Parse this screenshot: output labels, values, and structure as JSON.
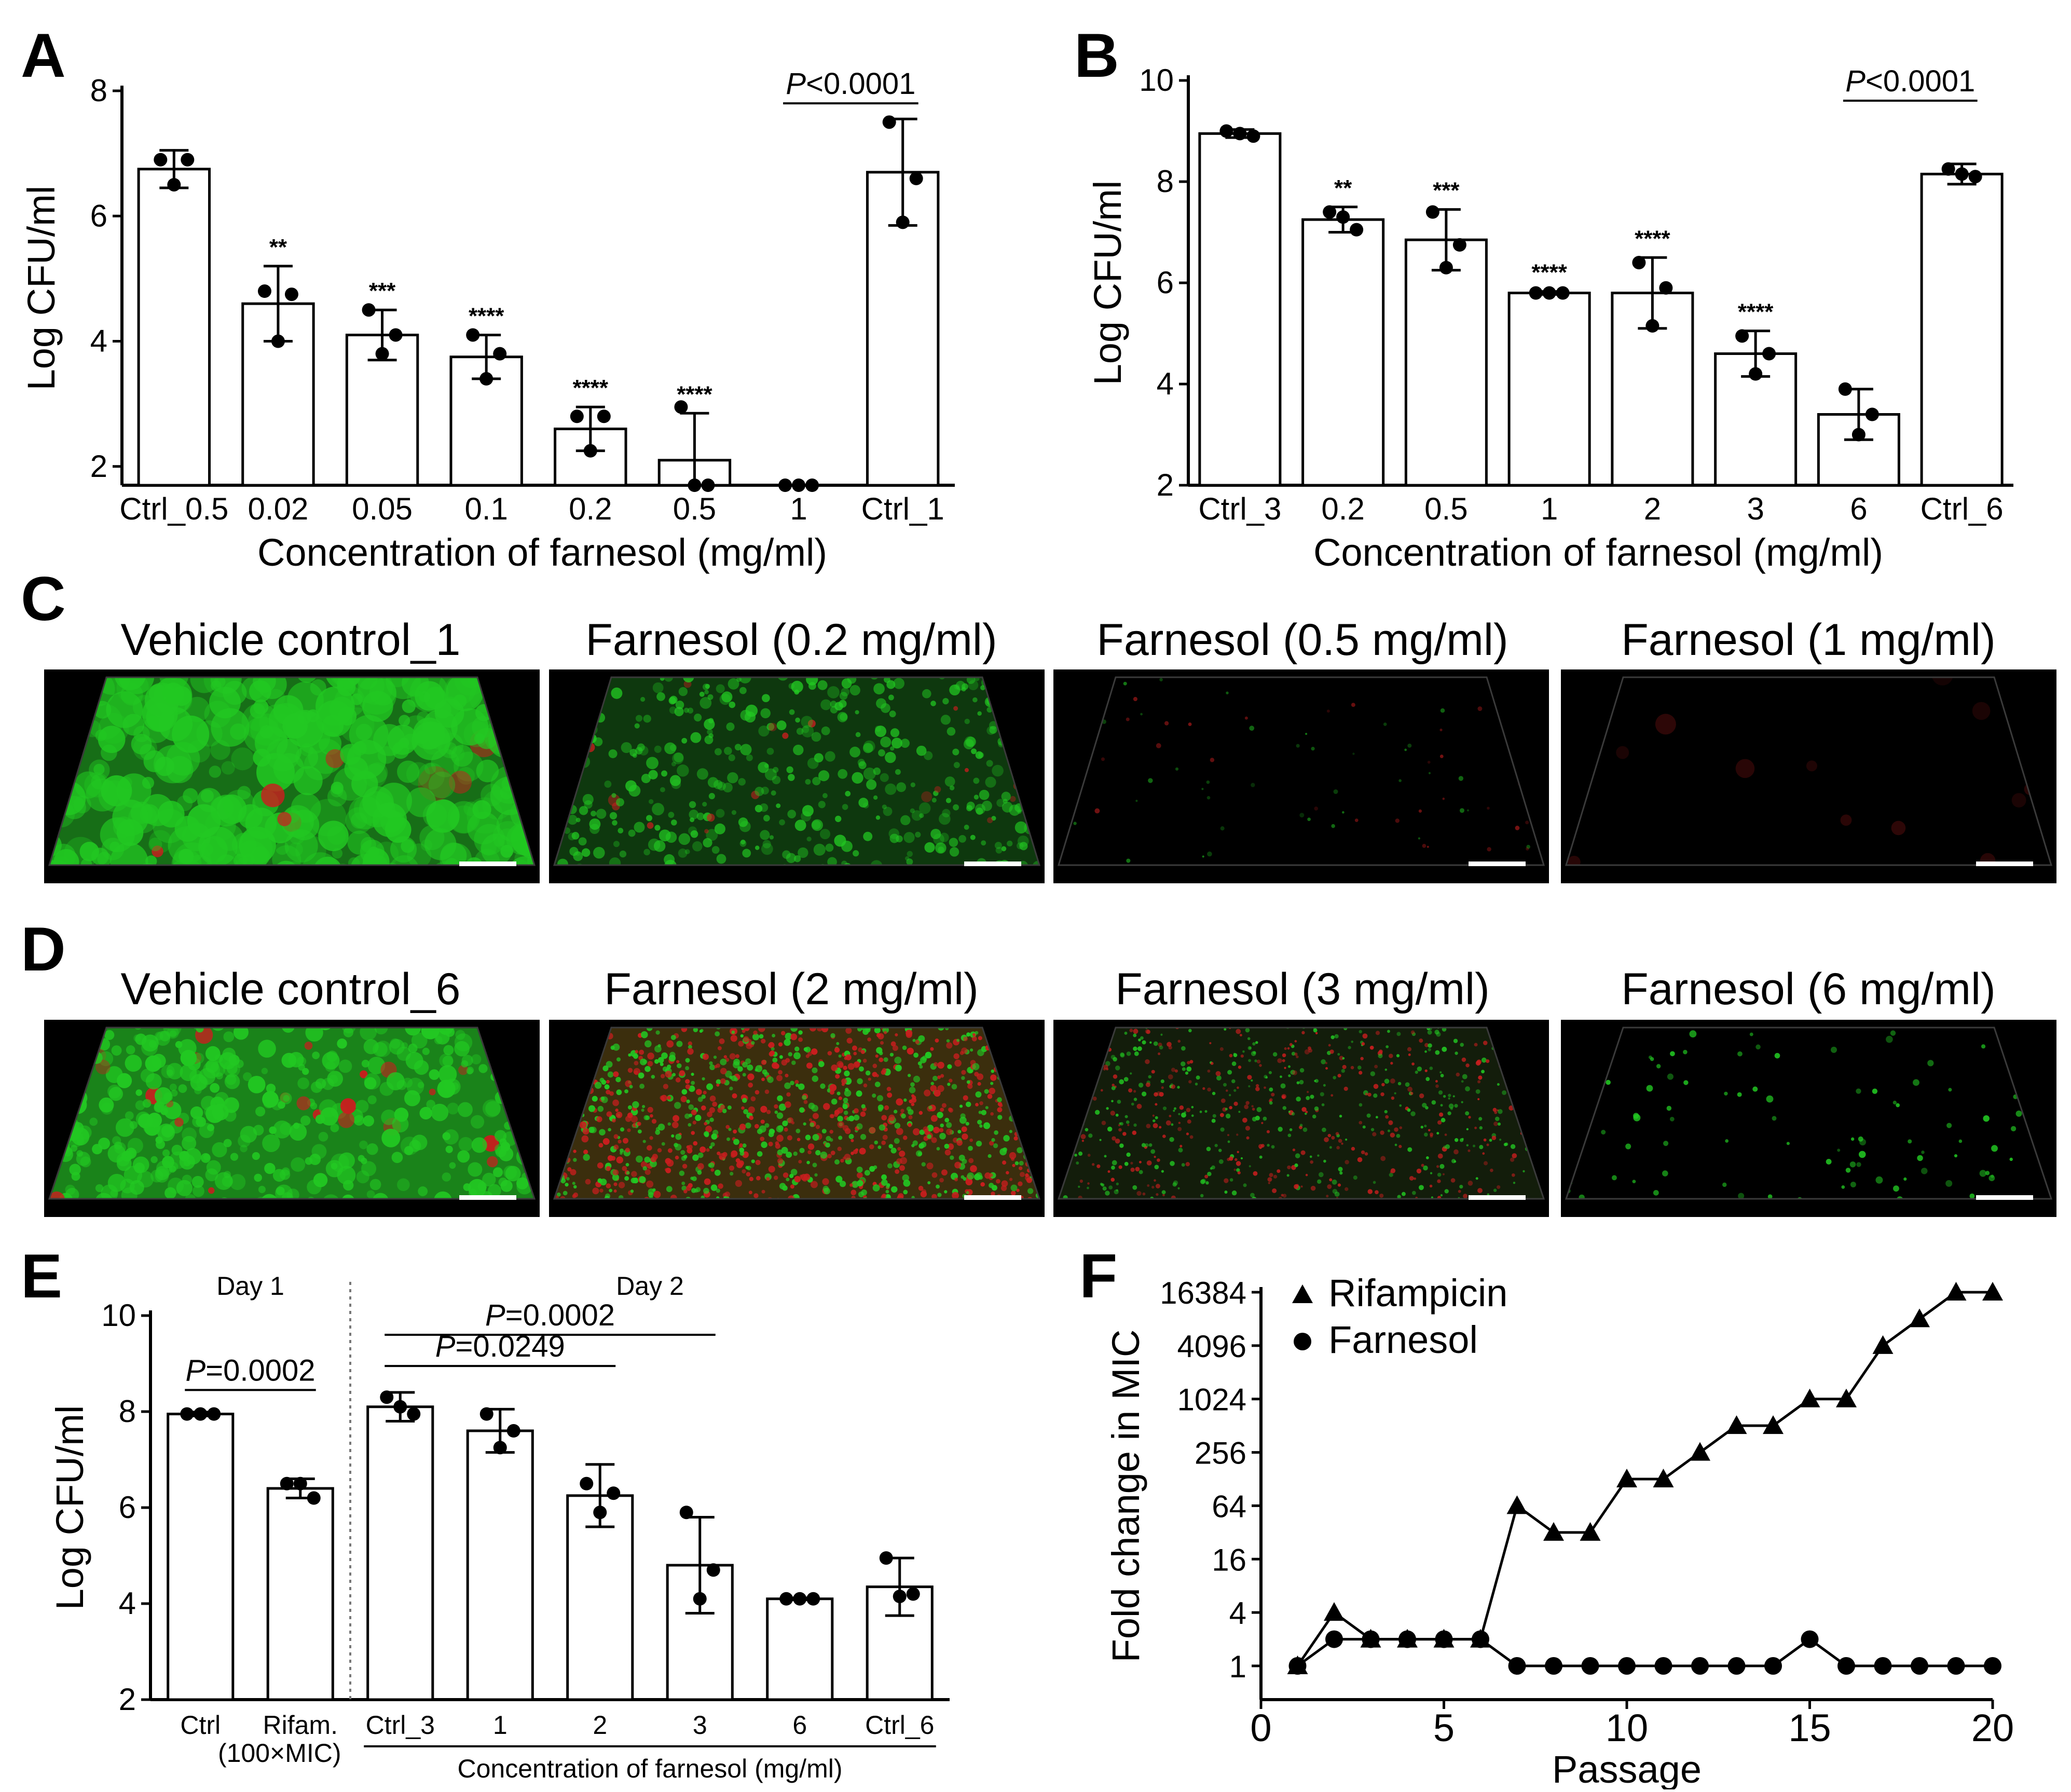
{
  "panels": {
    "A": {
      "letter": "A"
    },
    "B": {
      "letter": "B"
    },
    "C": {
      "letter": "C",
      "titles": [
        "Vehicle control_1",
        "Farnesol (0.2 mg/ml)",
        "Farnesol (0.5 mg/ml)",
        "Farnesol (1 mg/ml)"
      ]
    },
    "D": {
      "letter": "D",
      "titles": [
        "Vehicle control_6",
        "Farnesol (2 mg/ml)",
        "Farnesol (3 mg/ml)",
        "Farnesol (6 mg/ml)"
      ]
    },
    "E": {
      "letter": "E"
    },
    "F": {
      "letter": "F"
    }
  },
  "colors": {
    "image_background": "#000000",
    "live_stain": "#22c822",
    "dead_stain": "#c81e1e",
    "scale_bar": "#ffffff"
  },
  "chart_data": [
    {
      "id": "A",
      "type": "bar",
      "ylabel": "Log CFU/ml",
      "xlabel": "Concentration of farnesol (mg/ml)",
      "ylim": [
        1.7,
        8
      ],
      "yticks": [
        2,
        4,
        6,
        8
      ],
      "categories": [
        "Ctrl_0.5",
        "0.02",
        "0.05",
        "0.1",
        "0.2",
        "0.5",
        "1",
        "Ctrl_1"
      ],
      "values": [
        6.75,
        4.6,
        4.1,
        3.75,
        2.6,
        2.1,
        1.7,
        6.7
      ],
      "errors": [
        0.3,
        0.6,
        0.4,
        0.35,
        0.35,
        0.75,
        0,
        0.85
      ],
      "points": [
        [
          6.9,
          6.9,
          6.5
        ],
        [
          4.8,
          4.75,
          4.0
        ],
        [
          4.5,
          4.1,
          3.8
        ],
        [
          4.1,
          3.8,
          3.4
        ],
        [
          2.8,
          2.8,
          2.25
        ],
        [
          2.95,
          1.7,
          1.7
        ],
        [
          1.7,
          1.7,
          1.7
        ],
        [
          7.5,
          6.6,
          5.9
        ]
      ],
      "significance": [
        "",
        "**",
        "***",
        "****",
        "****",
        "****",
        "",
        ""
      ],
      "brackets": [
        {
          "from": 6,
          "to": 7,
          "label_italic": "P",
          "label_rest": "<0.0001",
          "y": 7.8
        }
      ]
    },
    {
      "id": "B",
      "type": "bar",
      "ylabel": "Log CFU/ml",
      "xlabel": "Concentration of farnesol (mg/ml)",
      "ylim": [
        2,
        10
      ],
      "yticks": [
        2,
        4,
        6,
        8,
        10
      ],
      "categories": [
        "Ctrl_3",
        "0.2",
        "0.5",
        "1",
        "2",
        "3",
        "6",
        "Ctrl_6"
      ],
      "values": [
        8.95,
        7.25,
        6.85,
        5.8,
        5.8,
        4.6,
        3.4,
        8.15
      ],
      "errors": [
        0.08,
        0.25,
        0.6,
        0.03,
        0.7,
        0.45,
        0.5,
        0.2
      ],
      "points": [
        [
          9.0,
          8.9,
          8.95
        ],
        [
          7.4,
          7.05,
          7.3
        ],
        [
          7.4,
          6.75,
          6.3
        ],
        [
          5.8,
          5.8,
          5.8
        ],
        [
          6.4,
          5.9,
          5.15
        ],
        [
          4.95,
          4.6,
          4.2
        ],
        [
          3.9,
          3.4,
          3.0
        ],
        [
          8.25,
          8.1,
          8.15
        ]
      ],
      "significance": [
        "",
        "**",
        "***",
        "****",
        "****",
        "****",
        "",
        ""
      ],
      "brackets": [
        {
          "from": 6,
          "to": 7,
          "label_italic": "P",
          "label_rest": "<0.0001",
          "y": 9.6
        }
      ]
    },
    {
      "id": "E",
      "type": "bar",
      "ylabel": "Log CFU/ml",
      "xlabel": "Concentration of farnesol (mg/ml)",
      "ylim": [
        2,
        10
      ],
      "yticks": [
        2,
        4,
        6,
        8,
        10
      ],
      "categories": [
        "Ctrl",
        "Rifam.",
        "Ctrl_3",
        "1",
        "2",
        "3",
        "6",
        "Ctrl_6"
      ],
      "sublabel": "(100×MIC)",
      "group_labels": [
        "Day 1",
        "Day 2"
      ],
      "values": [
        7.95,
        6.4,
        8.1,
        7.6,
        6.25,
        4.8,
        4.1,
        4.35
      ],
      "errors": [
        0.04,
        0.2,
        0.3,
        0.45,
        0.65,
        1.0,
        0.02,
        0.6
      ],
      "points": [
        [
          7.95,
          7.95,
          7.95
        ],
        [
          6.5,
          6.2,
          6.5
        ],
        [
          8.3,
          7.95,
          8.1
        ],
        [
          7.95,
          7.6,
          7.25
        ],
        [
          6.5,
          6.3,
          5.9
        ],
        [
          5.9,
          4.7,
          4.1
        ],
        [
          4.1,
          4.1,
          4.1
        ],
        [
          4.95,
          4.2,
          4.15
        ]
      ],
      "brackets": [
        {
          "from": 0,
          "to": 1,
          "label_italic": "P",
          "label_rest": "=0.0002",
          "y": 8.45
        },
        {
          "from": 2,
          "to": 4,
          "label_italic": "P",
          "label_rest": "=0.0249",
          "y": 8.95
        },
        {
          "from": 2,
          "to": 5,
          "label_italic": "P",
          "label_rest": "=0.0002",
          "y": 9.6
        }
      ]
    },
    {
      "id": "F",
      "type": "line",
      "ylabel": "Fold change in MIC",
      "xlabel": "Passage",
      "xlim": [
        0,
        20
      ],
      "xticks": [
        0,
        5,
        10,
        15,
        20
      ],
      "yscale": "log2",
      "ylim": [
        1,
        16384
      ],
      "yticks": [
        1,
        4,
        16,
        64,
        256,
        1024,
        4096,
        16384
      ],
      "series": [
        {
          "name": "Rifampicin",
          "marker": "triangle",
          "x": [
            1,
            2,
            3,
            4,
            5,
            6,
            7,
            8,
            9,
            10,
            11,
            12,
            13,
            14,
            15,
            16,
            17,
            18,
            19,
            20
          ],
          "y": [
            1,
            4,
            2,
            2,
            2,
            2,
            64,
            32,
            32,
            128,
            128,
            256,
            512,
            512,
            1024,
            1024,
            4096,
            8192,
            16384,
            16384
          ]
        },
        {
          "name": "Farnesol",
          "marker": "circle",
          "x": [
            1,
            2,
            3,
            4,
            5,
            6,
            7,
            8,
            9,
            10,
            11,
            12,
            13,
            14,
            15,
            16,
            17,
            18,
            19,
            20
          ],
          "y": [
            1,
            2,
            2,
            2,
            2,
            2,
            1,
            1,
            1,
            1,
            1,
            1,
            1,
            1,
            2,
            1,
            1,
            1,
            1,
            1
          ]
        }
      ],
      "legend": "top-left"
    }
  ]
}
